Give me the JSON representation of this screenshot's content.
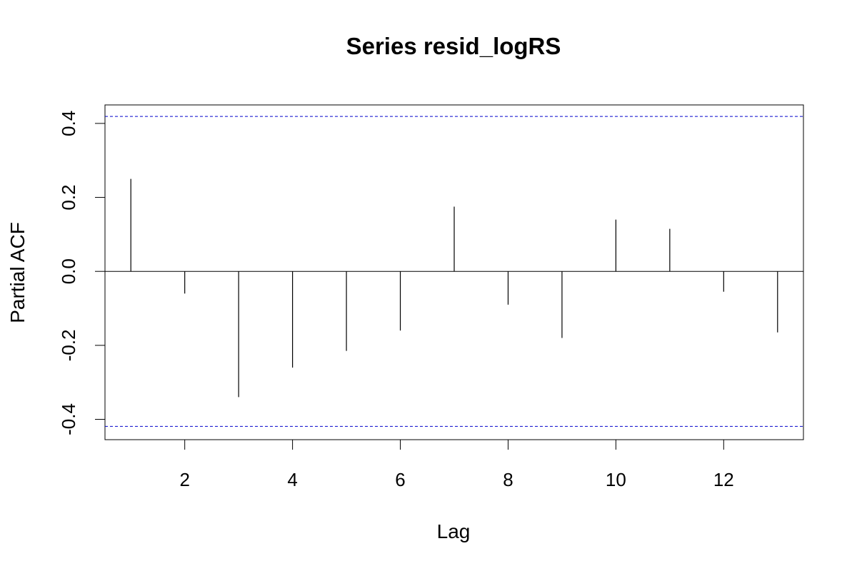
{
  "chart_data": {
    "type": "bar",
    "title": "Series  resid_logRS",
    "xlabel": "Lag",
    "ylabel": "Partial ACF",
    "x": [
      1,
      2,
      3,
      4,
      5,
      6,
      7,
      8,
      9,
      10,
      11,
      12,
      13
    ],
    "values": [
      0.25,
      -0.06,
      -0.34,
      -0.26,
      -0.215,
      -0.16,
      0.175,
      -0.09,
      -0.18,
      0.14,
      0.115,
      -0.055,
      -0.165
    ],
    "xlim": [
      0.52,
      13.48
    ],
    "ylim": [
      -0.455,
      0.45
    ],
    "x_ticks": [
      "2",
      "4",
      "6",
      "8",
      "10",
      "12"
    ],
    "y_ticks": [
      "-0.4",
      "-0.2",
      "0.0",
      "0.2",
      "0.4"
    ],
    "confidence_bound": 0.419,
    "confidence_color": "#0000cc",
    "bar_color": "#000000",
    "grid": false
  }
}
